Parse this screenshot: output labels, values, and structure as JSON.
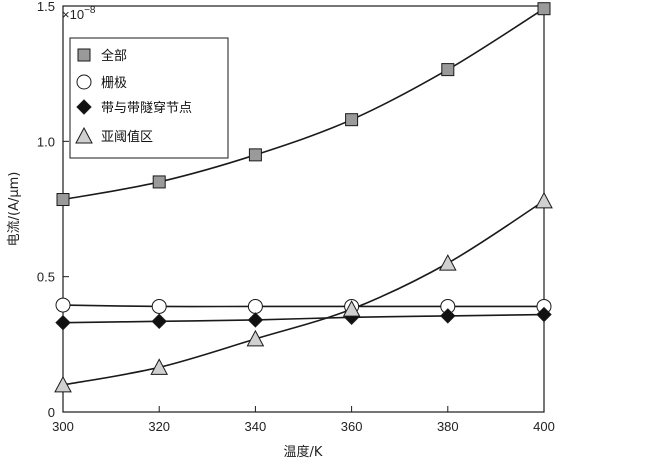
{
  "chart_data": {
    "type": "line",
    "xlabel": "温度/K",
    "ylabel": "电流/(A/μm)",
    "y_multiplier": "×10",
    "y_multiplier_exp": "−8",
    "xlim": [
      300,
      400
    ],
    "ylim": [
      0,
      1.5
    ],
    "x_ticks": [
      300,
      320,
      340,
      360,
      380,
      400
    ],
    "x_tick_labels": [
      "300",
      "320",
      "340",
      "360",
      "380",
      "400"
    ],
    "y_ticks": [
      0,
      0.5,
      1.0,
      1.5
    ],
    "y_tick_labels": [
      "0",
      "0.5",
      "1.0",
      "1.5"
    ],
    "grid": false,
    "legend_position": "top-left",
    "x": [
      300,
      320,
      340,
      360,
      380,
      400
    ],
    "series": [
      {
        "name": "全部",
        "marker": "square",
        "fill": "#9a9a9a",
        "values": [
          0.785,
          0.85,
          0.95,
          1.08,
          1.265,
          1.49
        ]
      },
      {
        "name": "栅极",
        "marker": "circle",
        "fill": "#ffffff",
        "values": [
          0.395,
          0.39,
          0.39,
          0.39,
          0.39,
          0.39
        ]
      },
      {
        "name": "带与带隧穿节点",
        "marker": "diamond",
        "fill": "#111111",
        "values": [
          0.33,
          0.335,
          0.34,
          0.35,
          0.355,
          0.36
        ]
      },
      {
        "name": "亚阈值区",
        "marker": "triangle",
        "fill": "#d0d0d0",
        "values": [
          0.1,
          0.165,
          0.27,
          0.38,
          0.55,
          0.78
        ]
      }
    ]
  }
}
